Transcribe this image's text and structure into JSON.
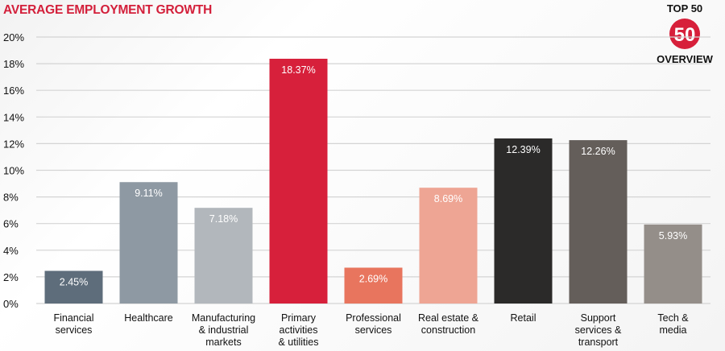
{
  "chart_data": {
    "type": "bar",
    "title": "AVERAGE EMPLOYMENT GROWTH",
    "xlabel": "",
    "ylabel": "",
    "ylim": [
      0,
      20
    ],
    "yticks": [
      "0%",
      "2%",
      "4%",
      "6%",
      "8%",
      "10%",
      "12%",
      "14%",
      "16%",
      "18%",
      "20%"
    ],
    "grid": true,
    "categories": [
      [
        "Financial",
        "services"
      ],
      [
        "Healthcare"
      ],
      [
        "Manufacturing",
        "& industrial",
        "markets"
      ],
      [
        "Primary",
        "activities",
        "& utilities"
      ],
      [
        "Professional",
        "services"
      ],
      [
        "Real estate &",
        "construction"
      ],
      [
        "Retail"
      ],
      [
        "Support",
        "services &",
        "transport"
      ],
      [
        "Tech &",
        "media"
      ]
    ],
    "values": [
      2.45,
      9.11,
      7.18,
      18.37,
      2.69,
      8.69,
      12.39,
      12.26,
      5.93
    ],
    "labels": [
      "2.45%",
      "9.11%",
      "7.18%",
      "18.37%",
      "2.69%",
      "8.69%",
      "12.39%",
      "12.26%",
      "5.93%"
    ],
    "colors": [
      "#5e6d7b",
      "#8e99a3",
      "#b2b7bc",
      "#d7203b",
      "#e8755e",
      "#eea594",
      "#2b2a29",
      "#645e5a",
      "#948e89"
    ]
  },
  "logo": {
    "top": "TOP 50",
    "number": "50",
    "bottom": "OVERVIEW",
    "color": "#d7203b"
  }
}
